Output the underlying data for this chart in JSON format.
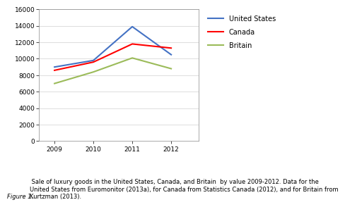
{
  "years": [
    2009,
    2010,
    2011,
    2012
  ],
  "united_states": [
    9000,
    9800,
    13900,
    10500
  ],
  "canada": [
    8600,
    9600,
    11800,
    11300
  ],
  "britain": [
    7000,
    8400,
    10100,
    8800
  ],
  "us_color": "#4472C4",
  "canada_color": "#FF0000",
  "britain_color": "#9BBB59",
  "ylim": [
    0,
    16000
  ],
  "yticks": [
    0,
    2000,
    4000,
    6000,
    8000,
    10000,
    12000,
    14000,
    16000
  ],
  "xticks": [
    2009,
    2010,
    2011,
    2012
  ],
  "legend_labels": [
    "United States",
    "Canada",
    "Britain"
  ],
  "caption_italic": "Figure 1.",
  "caption_normal": " Sale of luxury goods in the United States, Canada, and Britain  by value 2009-2012. Data for the\nUnited States from Euromonitor (2013a), for Canada from Statistics Canada (2012), and for Britain from\nKurtzman (2013).",
  "bg_color": "#FFFFFF",
  "plot_bg_color": "#FFFFFF",
  "grid_color": "#D0D0D0",
  "line_width": 1.5
}
